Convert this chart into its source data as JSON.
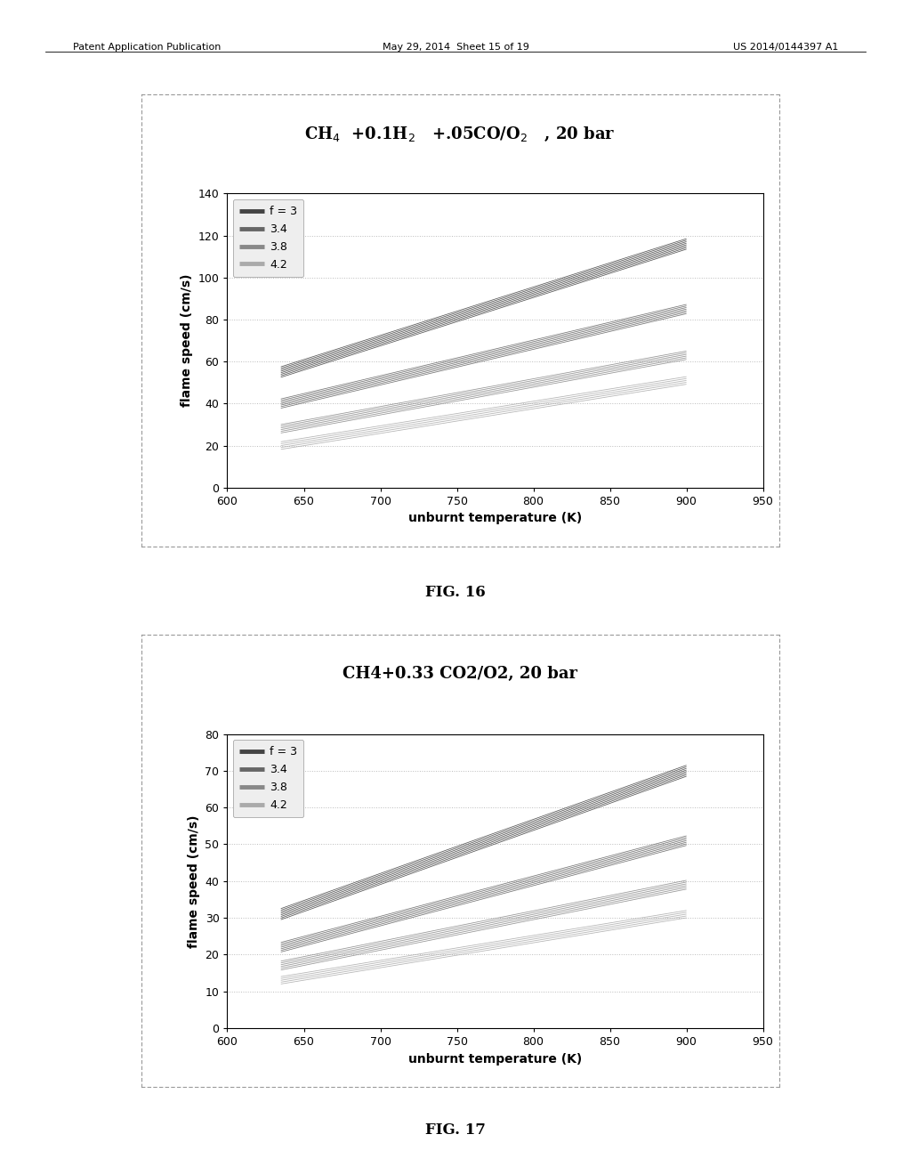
{
  "fig16": {
    "title": "CH$_4$  +0.1H$_2$   +.05CO/O$_2$   , 20 bar",
    "xlabel": "unburnt temperature (K)",
    "ylabel": "flame speed (cm/s)",
    "xlim": [
      600,
      950
    ],
    "ylim": [
      0,
      140
    ],
    "xticks": [
      600,
      650,
      700,
      750,
      800,
      850,
      900,
      950
    ],
    "yticks": [
      0,
      20,
      40,
      60,
      80,
      100,
      120,
      140
    ],
    "series": [
      {
        "label": "f = 3",
        "x0": 635,
        "x1": 900,
        "y0": 55,
        "y1": 116,
        "color": "#444444",
        "n_bands": 8,
        "band_spread": 2.5
      },
      {
        "label": "3.4",
        "x0": 635,
        "x1": 900,
        "y0": 40,
        "y1": 85,
        "color": "#666666",
        "n_bands": 7,
        "band_spread": 2.2
      },
      {
        "label": "3.8",
        "x0": 635,
        "x1": 900,
        "y0": 28,
        "y1": 63,
        "color": "#888888",
        "n_bands": 6,
        "band_spread": 2.0
      },
      {
        "label": "4.2",
        "x0": 635,
        "x1": 900,
        "y0": 20,
        "y1": 51,
        "color": "#aaaaaa",
        "n_bands": 5,
        "band_spread": 1.8
      }
    ]
  },
  "fig17": {
    "title": "CH4+0.33 CO2/O2, 20 bar",
    "xlabel": "unburnt temperature (K)",
    "ylabel": "flame speed (cm/s)",
    "xlim": [
      600,
      950
    ],
    "ylim": [
      0,
      80
    ],
    "xticks": [
      600,
      650,
      700,
      750,
      800,
      850,
      900,
      950
    ],
    "yticks": [
      0,
      10,
      20,
      30,
      40,
      50,
      60,
      70,
      80
    ],
    "series": [
      {
        "label": "f = 3",
        "x0": 635,
        "x1": 900,
        "y0": 31,
        "y1": 70,
        "color": "#444444",
        "n_bands": 8,
        "band_spread": 1.5
      },
      {
        "label": "3.4",
        "x0": 635,
        "x1": 900,
        "y0": 22,
        "y1": 51,
        "color": "#666666",
        "n_bands": 7,
        "band_spread": 1.3
      },
      {
        "label": "3.8",
        "x0": 635,
        "x1": 900,
        "y0": 17,
        "y1": 39,
        "color": "#888888",
        "n_bands": 6,
        "band_spread": 1.2
      },
      {
        "label": "4.2",
        "x0": 635,
        "x1": 900,
        "y0": 13,
        "y1": 31,
        "color": "#aaaaaa",
        "n_bands": 5,
        "band_spread": 1.0
      }
    ]
  },
  "header_left": "Patent Application Publication",
  "header_mid": "May 29, 2014  Sheet 15 of 19",
  "header_right": "US 2014/0144397 A1",
  "fig16_caption": "FIG. 16",
  "fig17_caption": "FIG. 17",
  "background_color": "#ffffff",
  "plot_bg_color": "#ffffff",
  "outer_bg_color": "#ffffff",
  "border_color": "#999999",
  "grid_color": "#bbbbbb",
  "grid_style": ":",
  "legend_bg": "#eeeeee"
}
